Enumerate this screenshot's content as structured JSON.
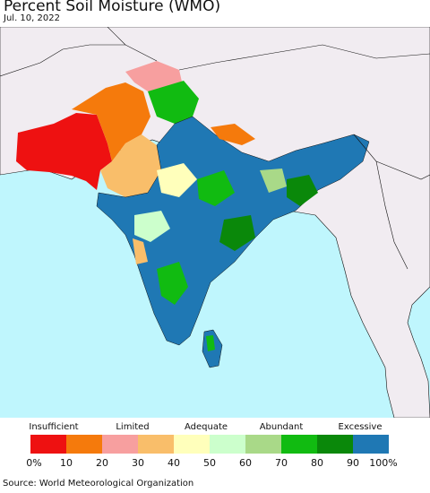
{
  "title": "Percent Soil Moisture (WMO)",
  "date": "Jul. 10, 2022",
  "source": "Source: World Meteorological Organization",
  "legend": {
    "categories": [
      "Insufficient",
      "Limited",
      "Adequate",
      "Abundant",
      "Excessive"
    ],
    "ticks": [
      "0%",
      "10",
      "20",
      "30",
      "40",
      "50",
      "60",
      "70",
      "80",
      "90",
      "100%"
    ],
    "colors": [
      "#ee1111",
      "#f57a0c",
      "#f79f9f",
      "#f9be6a",
      "#ffffbb",
      "#ccffcc",
      "#a9d988",
      "#11bb11",
      "#0a880a",
      "#1f78b4"
    ]
  },
  "map_colors": {
    "ocean": "#bff6fd",
    "land_other": "#f1ecf1",
    "border": "#111111"
  }
}
